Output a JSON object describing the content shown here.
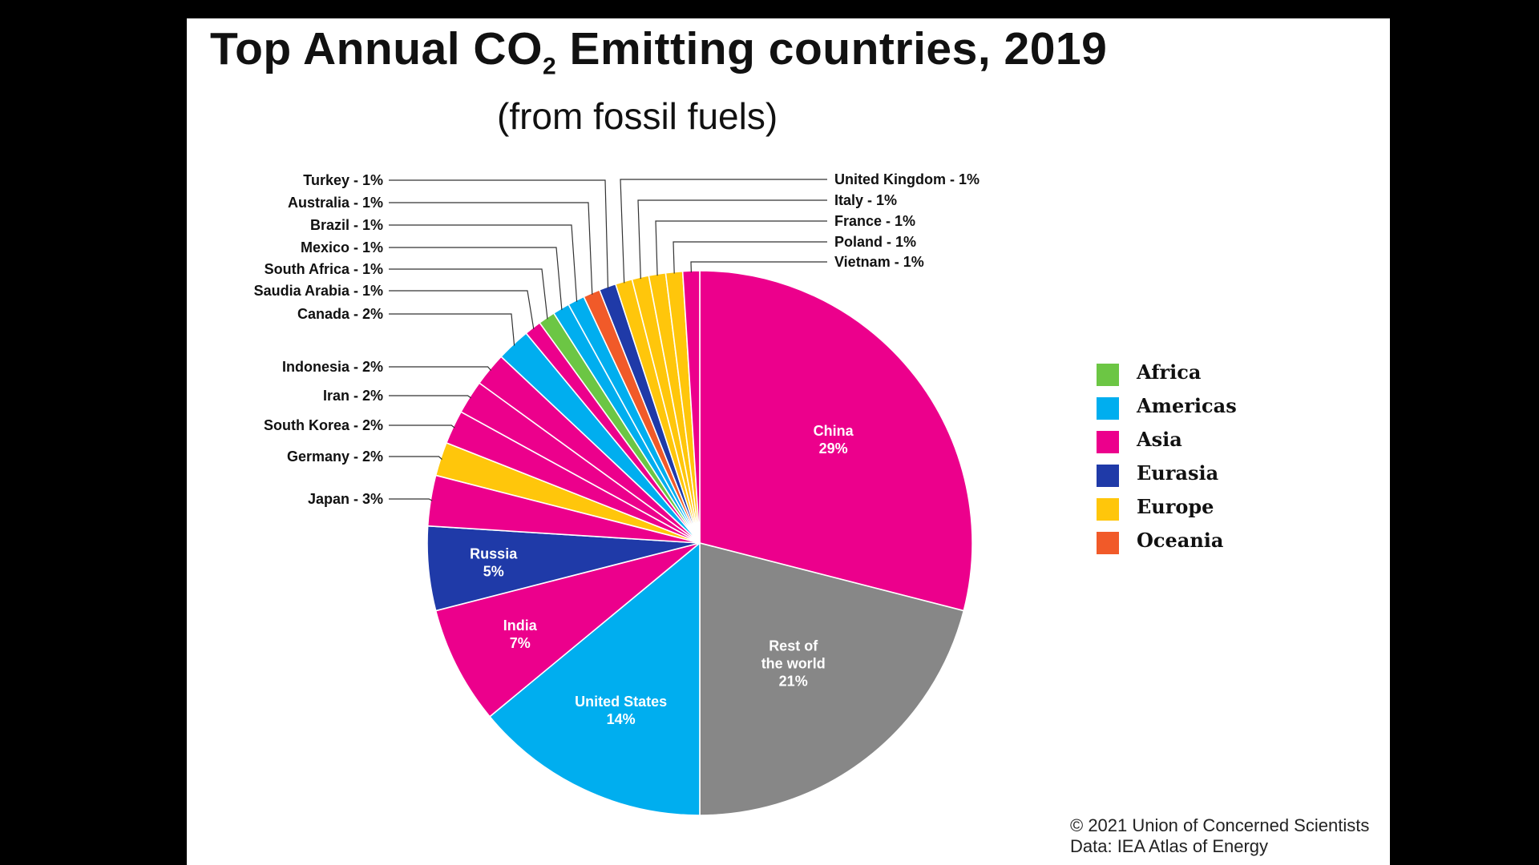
{
  "title": {
    "main_prefix": "Top Annual CO",
    "main_sub": "2",
    "main_suffix": " Emitting countries, 2019",
    "subtitle": "(from fossil fuels)"
  },
  "legend": {
    "position": "right",
    "items": [
      {
        "region": "Africa",
        "color": "#6CC644"
      },
      {
        "region": "Americas",
        "color": "#00AEEF"
      },
      {
        "region": "Asia",
        "color": "#EC008C"
      },
      {
        "region": "Eurasia",
        "color": "#1F3AA8"
      },
      {
        "region": "Europe",
        "color": "#FFC60B"
      },
      {
        "region": "Oceania",
        "color": "#F15A29"
      }
    ]
  },
  "credit": {
    "line1": "© 2021 Union of Concerned Scientists",
    "line2": "Data: IEA Atlas of Energy"
  },
  "chart_data": {
    "type": "pie",
    "title": "Top Annual CO2 Emitting countries, 2019",
    "subtitle": "(from fossil fuels)",
    "unit": "percent of global CO2 emissions",
    "slices": [
      {
        "name": "China",
        "value": 29,
        "region": "Asia",
        "label": "China",
        "value_label": "29%",
        "style": "inside"
      },
      {
        "name": "Rest of the world",
        "value": 21,
        "region": "Other",
        "label": "Rest of the world",
        "value_label": "21%",
        "style": "inside"
      },
      {
        "name": "United States",
        "value": 14,
        "region": "Americas",
        "label": "United States",
        "value_label": "14%",
        "style": "inside"
      },
      {
        "name": "India",
        "value": 7,
        "region": "Asia",
        "label": "India",
        "value_label": "7%",
        "style": "inside"
      },
      {
        "name": "Russia",
        "value": 5,
        "region": "Eurasia",
        "label": "Russia",
        "value_label": "5%",
        "style": "inside"
      },
      {
        "name": "Japan",
        "value": 3,
        "region": "Asia",
        "label": "Japan - 3%",
        "style": "left"
      },
      {
        "name": "Germany",
        "value": 2,
        "region": "Europe",
        "label": "Germany - 2%",
        "style": "left"
      },
      {
        "name": "South Korea",
        "value": 2,
        "region": "Asia",
        "label": "South Korea - 2%",
        "style": "left"
      },
      {
        "name": "Iran",
        "value": 2,
        "region": "Asia",
        "label": "Iran - 2%",
        "style": "left"
      },
      {
        "name": "Indonesia",
        "value": 2,
        "region": "Asia",
        "label": "Indonesia - 2%",
        "style": "left"
      },
      {
        "name": "Canada",
        "value": 2,
        "region": "Americas",
        "label": "Canada - 2%",
        "style": "left"
      },
      {
        "name": "Saudia Arabia",
        "value": 1,
        "region": "Asia",
        "label": "Saudia Arabia - 1%",
        "style": "left"
      },
      {
        "name": "South Africa",
        "value": 1,
        "region": "Africa",
        "label": "South Africa - 1%",
        "style": "left"
      },
      {
        "name": "Mexico",
        "value": 1,
        "region": "Americas",
        "label": "Mexico - 1%",
        "style": "left"
      },
      {
        "name": "Brazil",
        "value": 1,
        "region": "Americas",
        "label": "Brazil - 1%",
        "style": "left"
      },
      {
        "name": "Australia",
        "value": 1,
        "region": "Oceania",
        "label": "Australia - 1%",
        "style": "left"
      },
      {
        "name": "Turkey",
        "value": 1,
        "region": "Eurasia",
        "label": "Turkey - 1%",
        "style": "left"
      },
      {
        "name": "United Kingdom",
        "value": 1,
        "region": "Europe",
        "label": "United Kingdom - 1%",
        "style": "right"
      },
      {
        "name": "Italy",
        "value": 1,
        "region": "Europe",
        "label": "Italy - 1%",
        "style": "right"
      },
      {
        "name": "France",
        "value": 1,
        "region": "Europe",
        "label": "France - 1%",
        "style": "right"
      },
      {
        "name": "Poland",
        "value": 1,
        "region": "Europe",
        "label": "Poland - 1%",
        "style": "right"
      },
      {
        "name": "Vietnam",
        "value": 1,
        "region": "Asia",
        "label": "Vietnam - 1%",
        "style": "right"
      }
    ],
    "region_colors": {
      "Africa": "#6CC644",
      "Americas": "#00AEEF",
      "Asia": "#EC008C",
      "Eurasia": "#1F3AA8",
      "Europe": "#FFC60B",
      "Oceania": "#F15A29",
      "Other": "#878787"
    }
  }
}
